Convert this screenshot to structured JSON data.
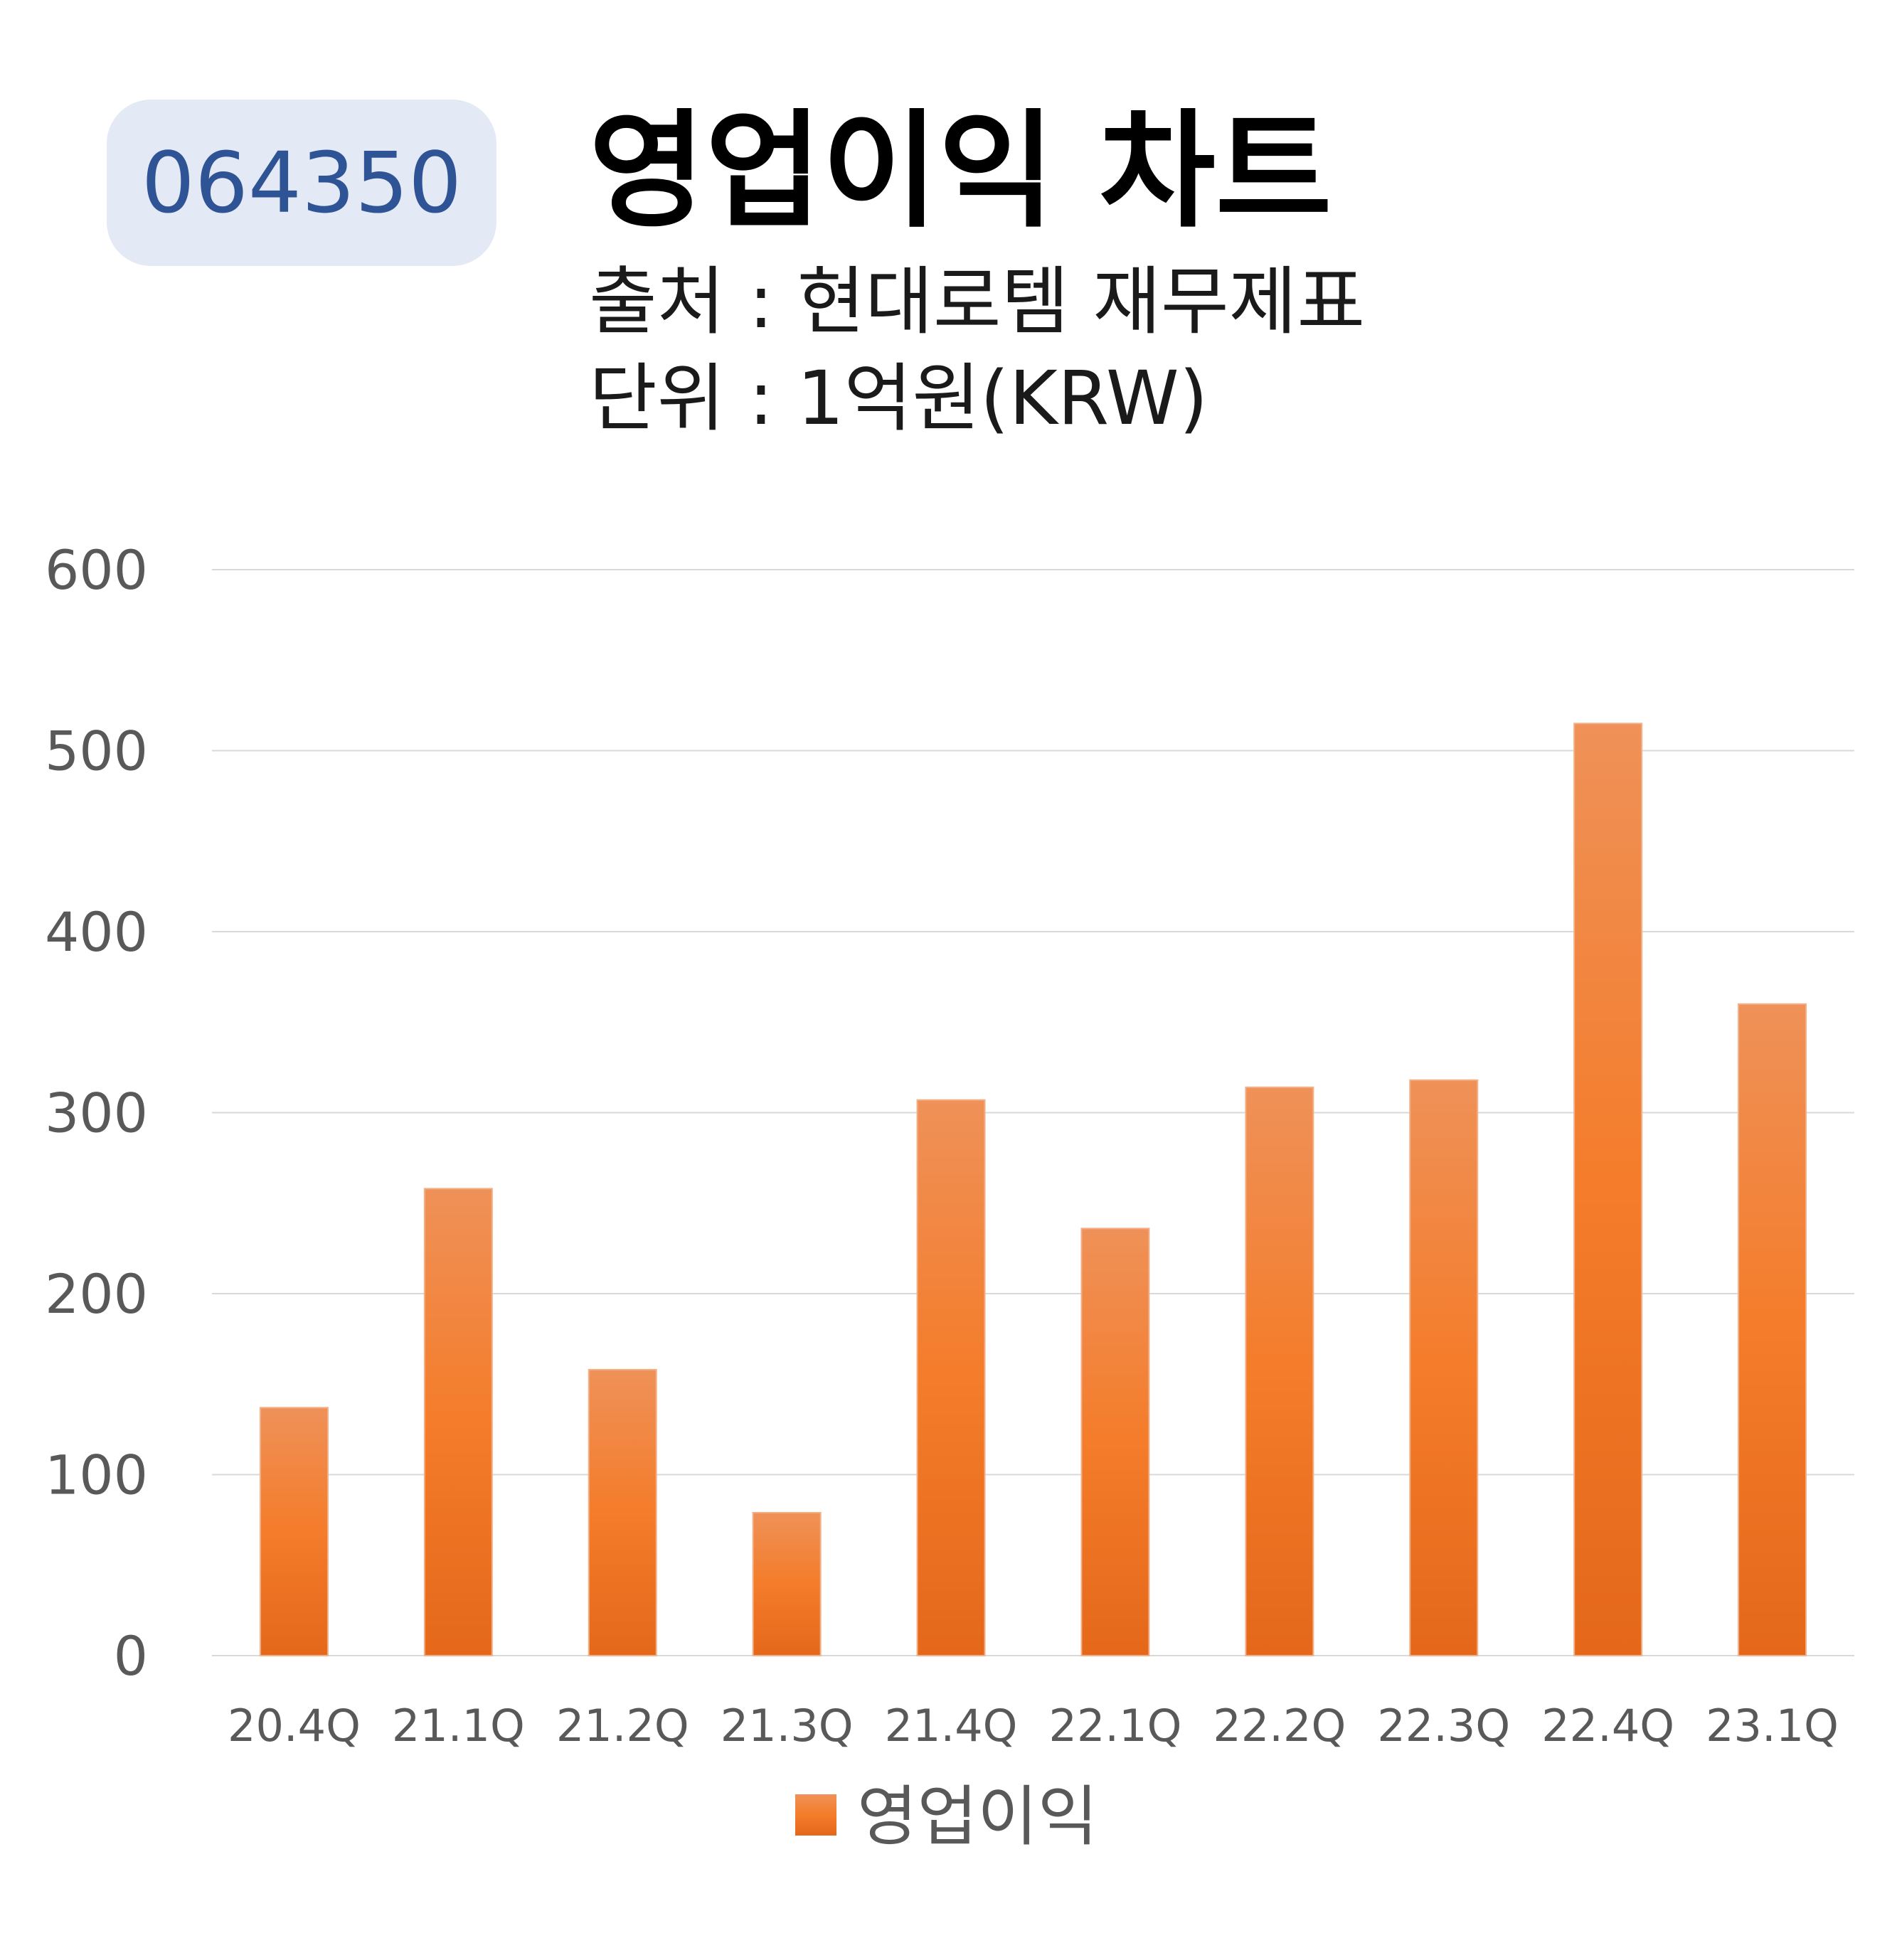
{
  "ticker": "064350",
  "title": "영업이익 차트",
  "source": "출처 : 현대로템 재무제표",
  "unit": "단위 : 1억원(KRW)",
  "colors": {
    "bar_top": "#ef9158",
    "bar_mid": "#f47c2a",
    "bar_bottom": "#e5681a",
    "gridline": "#d9d9d9",
    "tick_text": "#595959",
    "ticker_bg": "#e3e9f5",
    "ticker_text": "#2f5496"
  },
  "chart_data": {
    "type": "bar",
    "categories": [
      "20.4Q",
      "21.1Q",
      "21.2Q",
      "21.3Q",
      "21.4Q",
      "22.1Q",
      "22.2Q",
      "22.3Q",
      "22.4Q",
      "23.1Q"
    ],
    "series": [
      {
        "name": "영업이익",
        "values": [
          137,
          258,
          158,
          79,
          307,
          236,
          314,
          318,
          515,
          360
        ]
      }
    ],
    "ylim": [
      0,
      600
    ],
    "yticks": [
      0,
      100,
      200,
      300,
      400,
      500,
      600
    ],
    "grid": true,
    "legend": "bottom"
  }
}
